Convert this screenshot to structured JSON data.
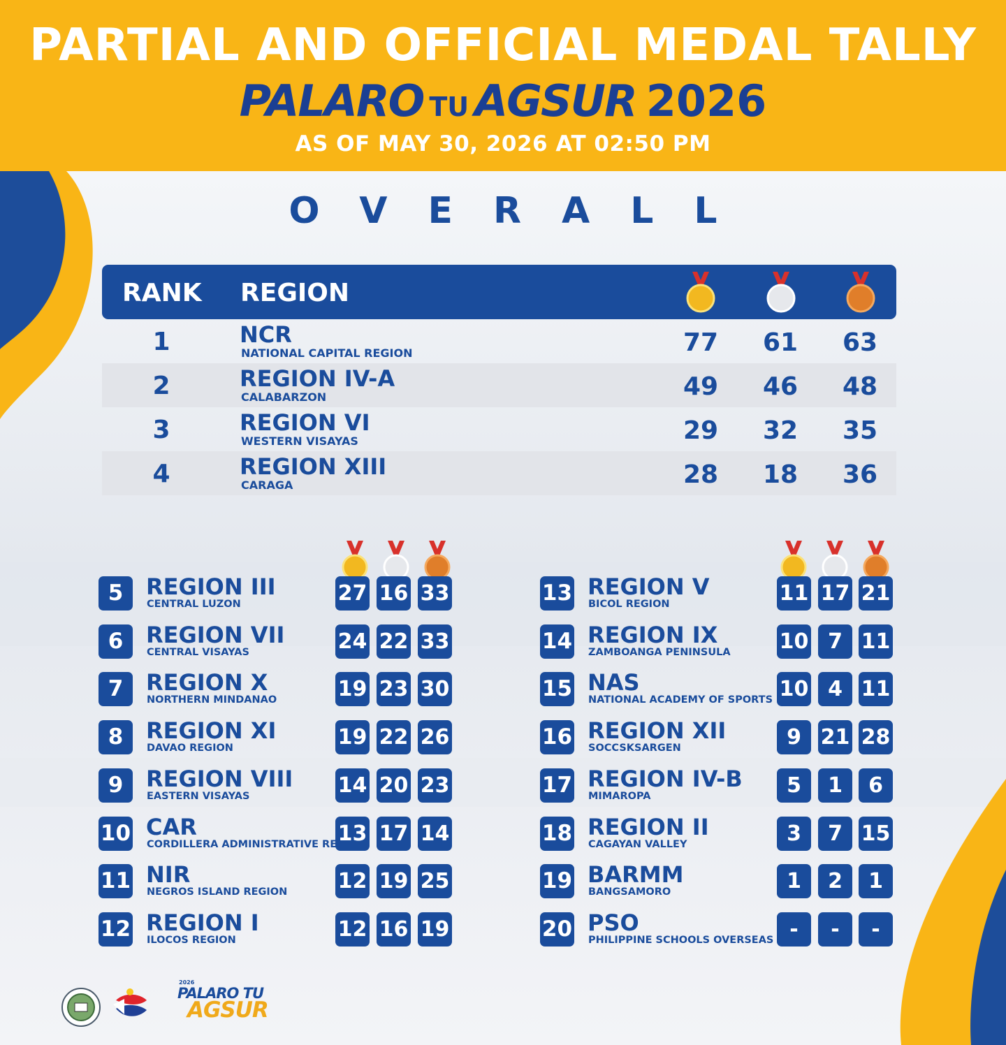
{
  "header": {
    "title": "PARTIAL AND OFFICIAL MEDAL TALLY",
    "event_part1": "PALARO",
    "event_part2": "TU",
    "event_part3": "AGSUR",
    "event_year": "2026",
    "as_of": "AS OF MAY 30, 2026 AT 02:50 PM"
  },
  "overall_heading": "OVERALL",
  "table_header": {
    "rank": "RANK",
    "region": "REGION"
  },
  "medal_icons": [
    "gold-medal-icon",
    "silver-medal-icon",
    "bronze-medal-icon"
  ],
  "colors": {
    "yellow": "#f9b516",
    "blue": "#1a4c9c",
    "gold": "#f2b820",
    "silver": "#e6e8ec",
    "bronze": "#e07e2a"
  },
  "top_regions": [
    {
      "rank": "1",
      "name": "NCR",
      "sub": "NATIONAL CAPITAL REGION",
      "gold": "77",
      "silver": "61",
      "bronze": "63"
    },
    {
      "rank": "2",
      "name": "REGION IV-A",
      "sub": "CALABARZON",
      "gold": "49",
      "silver": "46",
      "bronze": "48"
    },
    {
      "rank": "3",
      "name": "REGION VI",
      "sub": "WESTERN VISAYAS",
      "gold": "29",
      "silver": "32",
      "bronze": "35"
    },
    {
      "rank": "4",
      "name": "REGION XIII",
      "sub": "CARAGA",
      "gold": "28",
      "silver": "18",
      "bronze": "36"
    }
  ],
  "left_list": [
    {
      "rank": "5",
      "name": "REGION III",
      "sub": "CENTRAL LUZON",
      "gold": "27",
      "silver": "16",
      "bronze": "33"
    },
    {
      "rank": "6",
      "name": "REGION VII",
      "sub": "CENTRAL VISAYAS",
      "gold": "24",
      "silver": "22",
      "bronze": "33"
    },
    {
      "rank": "7",
      "name": "REGION X",
      "sub": "NORTHERN MINDANAO",
      "gold": "19",
      "silver": "23",
      "bronze": "30"
    },
    {
      "rank": "8",
      "name": "REGION XI",
      "sub": "DAVAO REGION",
      "gold": "19",
      "silver": "22",
      "bronze": "26"
    },
    {
      "rank": "9",
      "name": "REGION VIII",
      "sub": "EASTERN VISAYAS",
      "gold": "14",
      "silver": "20",
      "bronze": "23"
    },
    {
      "rank": "10",
      "name": "CAR",
      "sub": "CORDILLERA ADMINISTRATIVE REGION",
      "gold": "13",
      "silver": "17",
      "bronze": "14"
    },
    {
      "rank": "11",
      "name": "NIR",
      "sub": "NEGROS ISLAND REGION",
      "gold": "12",
      "silver": "19",
      "bronze": "25"
    },
    {
      "rank": "12",
      "name": "REGION I",
      "sub": "ILOCOS REGION",
      "gold": "12",
      "silver": "16",
      "bronze": "19"
    }
  ],
  "right_list": [
    {
      "rank": "13",
      "name": "REGION V",
      "sub": "BICOL REGION",
      "gold": "11",
      "silver": "17",
      "bronze": "21"
    },
    {
      "rank": "14",
      "name": "REGION IX",
      "sub": "ZAMBOANGA PENINSULA",
      "gold": "10",
      "silver": "7",
      "bronze": "11"
    },
    {
      "rank": "15",
      "name": "NAS",
      "sub": "NATIONAL ACADEMY OF SPORTS",
      "gold": "10",
      "silver": "4",
      "bronze": "11"
    },
    {
      "rank": "16",
      "name": "REGION XII",
      "sub": "SOCCSKSARGEN",
      "gold": "9",
      "silver": "21",
      "bronze": "28"
    },
    {
      "rank": "17",
      "name": "REGION IV-B",
      "sub": "MIMAROPA",
      "gold": "5",
      "silver": "1",
      "bronze": "6"
    },
    {
      "rank": "18",
      "name": "REGION II",
      "sub": "CAGAYAN VALLEY",
      "gold": "3",
      "silver": "7",
      "bronze": "15"
    },
    {
      "rank": "19",
      "name": "BARMM",
      "sub": "BANGSAMORO",
      "gold": "1",
      "silver": "2",
      "bronze": "1"
    },
    {
      "rank": "20",
      "name": "PSO",
      "sub": "PHILIPPINE SCHOOLS OVERSEAS",
      "gold": "-",
      "silver": "-",
      "bronze": "-"
    }
  ],
  "footer_logo": {
    "year": "2026",
    "line1": "PALARO TU",
    "line2": "AGSUR"
  }
}
